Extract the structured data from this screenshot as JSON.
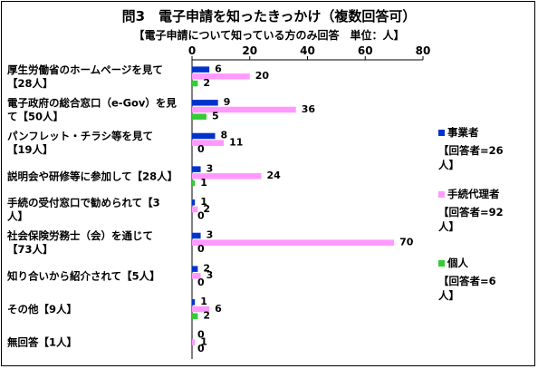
{
  "chart_data": {
    "type": "bar",
    "orientation": "horizontal",
    "title": "問3　電子申請を知ったきっかけ（複数回答可）",
    "subtitle": "【電子申請について知っている方のみ回答　単位：人】",
    "xlim": [
      0,
      80
    ],
    "xticks": [
      0,
      20,
      40,
      60,
      80
    ],
    "grid": false,
    "legend_position": "right",
    "categories": [
      [
        "厚生労働省のホームページを見て",
        "【28人】"
      ],
      [
        "電子政府の総合窓口（e-Gov）を見",
        "て【50人】"
      ],
      [
        "パンフレット・チラシ等を見て",
        "【19人】"
      ],
      [
        "説明会や研修等に参加して【28人】"
      ],
      [
        "手続の受付窓口で勧められて【3",
        "人】"
      ],
      [
        "社会保険労務士（会）を通じて",
        "【73人】"
      ],
      [
        "知り合いから紹介されて【5人】"
      ],
      [
        "その他【9人】"
      ],
      [
        "無回答【1人】"
      ]
    ],
    "series": [
      {
        "name": "事業者",
        "respondents": "【回答者=26人】",
        "color": "#0033cc",
        "values": [
          6,
          9,
          8,
          3,
          1,
          3,
          2,
          1,
          0
        ]
      },
      {
        "name": "手続代理者",
        "respondents": "【回答者=92人】",
        "color": "#ff99ff",
        "values": [
          20,
          36,
          11,
          24,
          2,
          70,
          3,
          6,
          1
        ]
      },
      {
        "name": "個人",
        "respondents": "【回答者=6人】",
        "color": "#33cc33",
        "values": [
          2,
          5,
          0,
          1,
          0,
          0,
          0,
          2,
          0
        ]
      }
    ]
  }
}
